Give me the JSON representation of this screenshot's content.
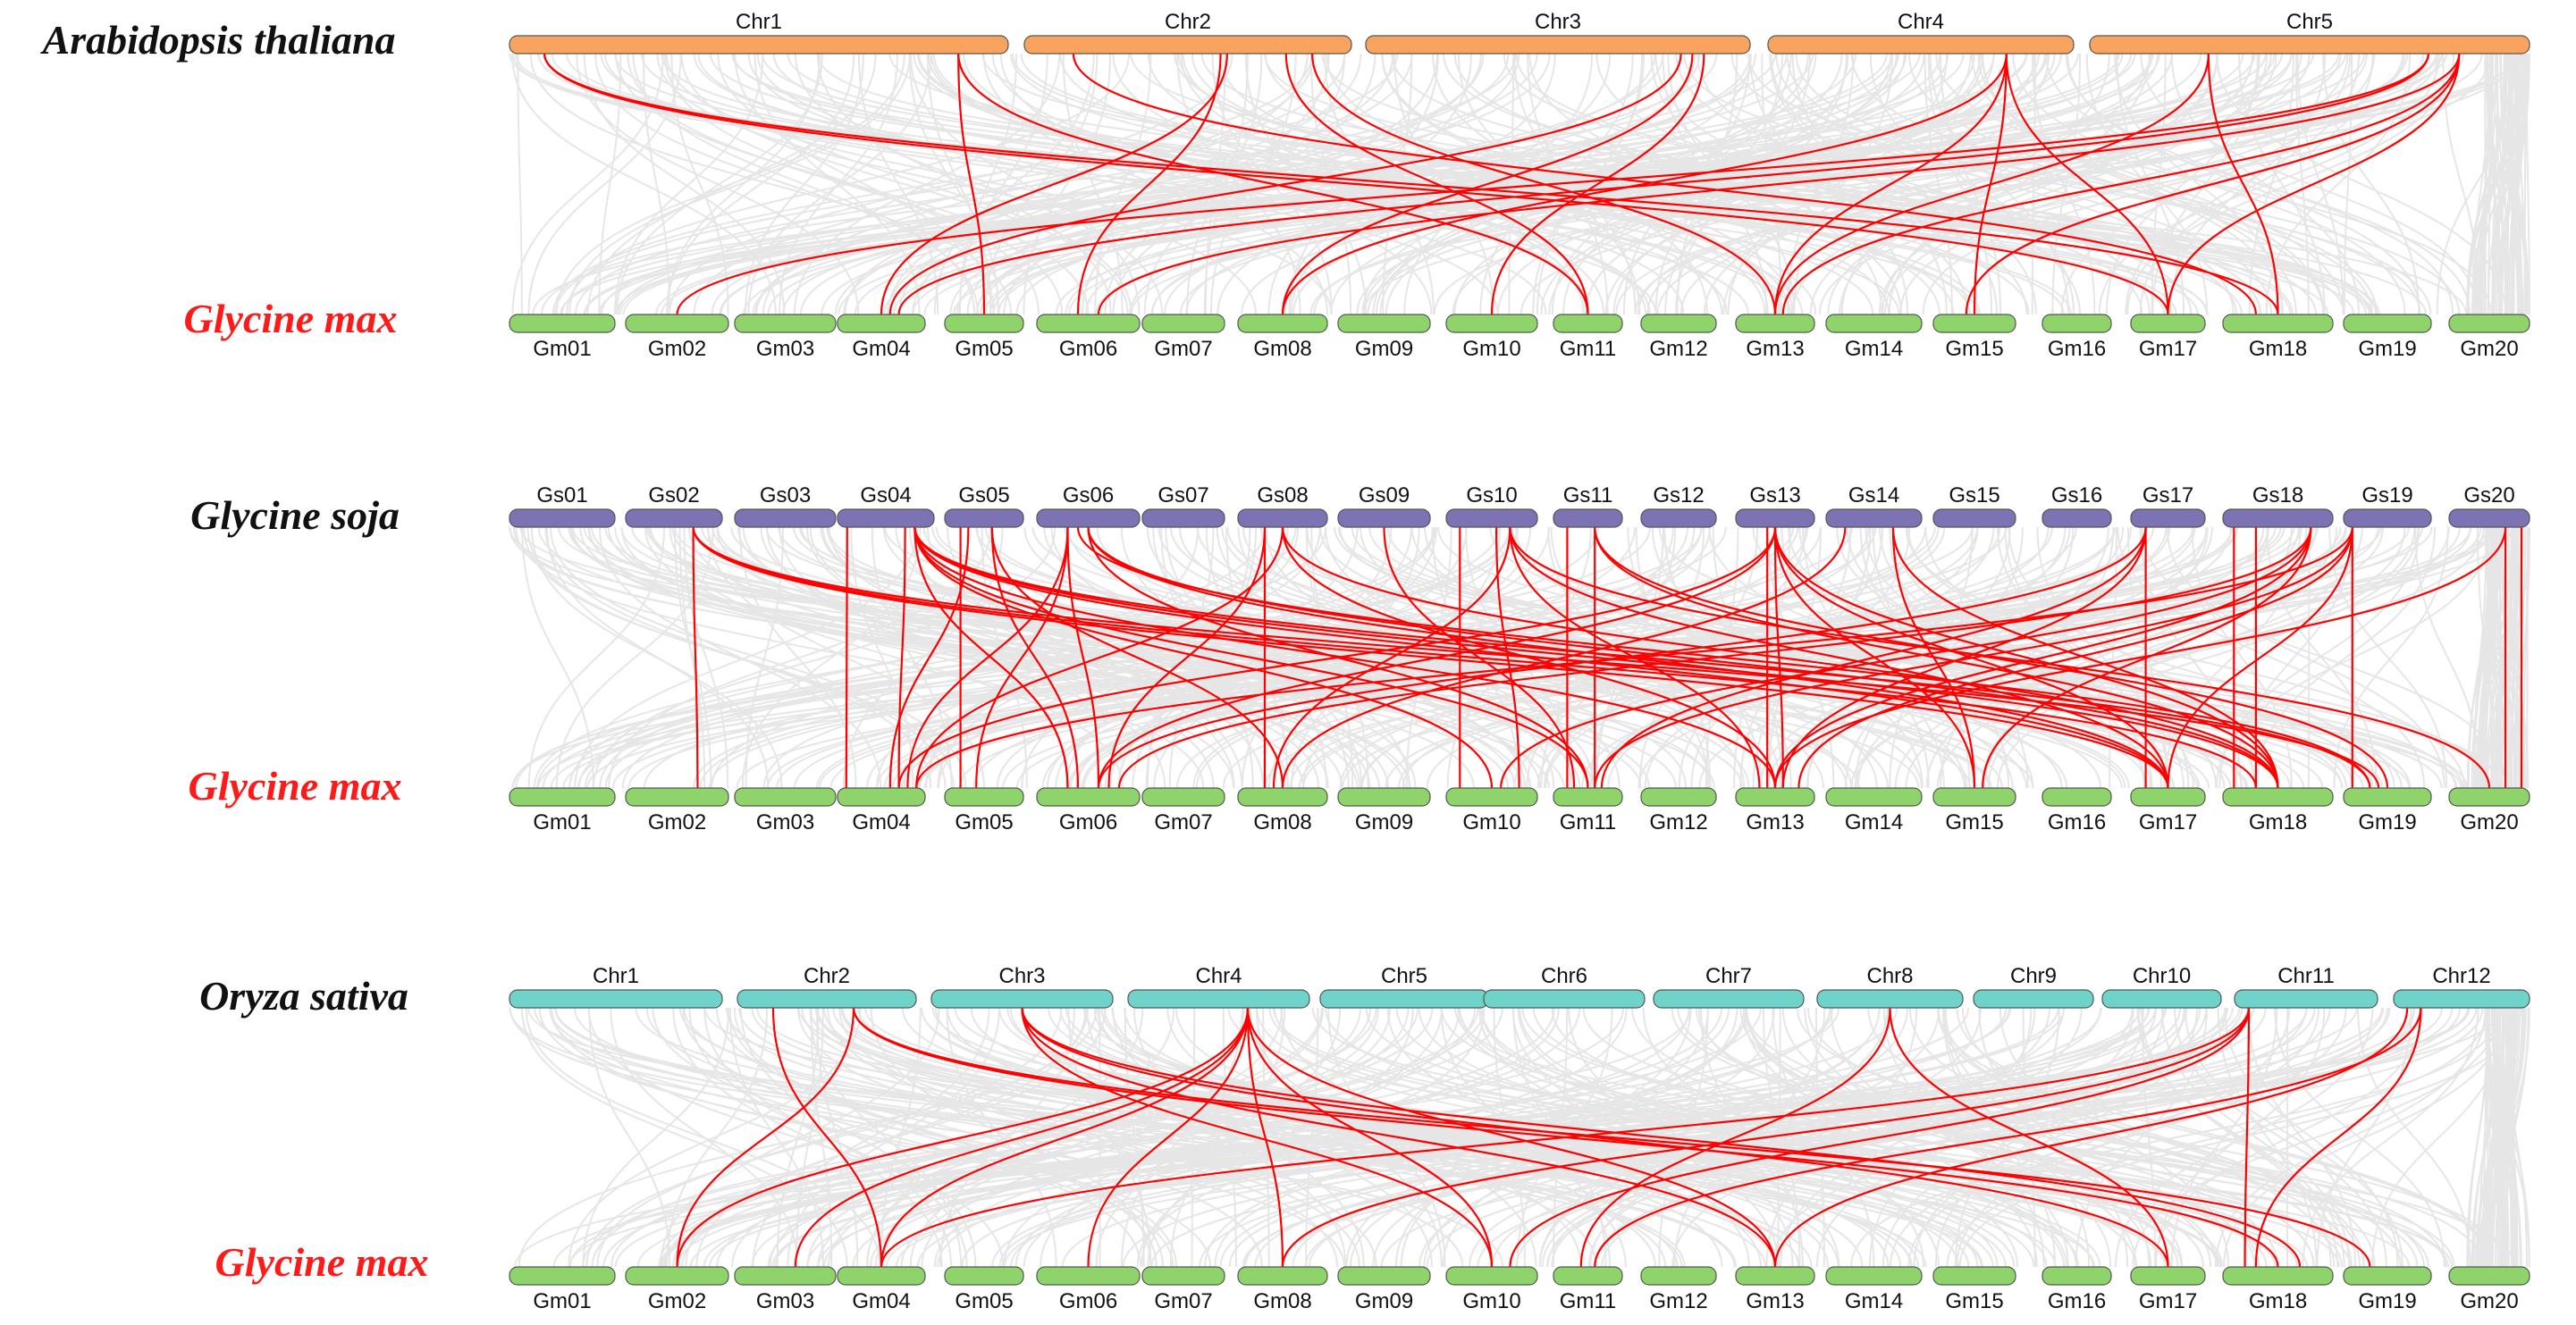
{
  "colors": {
    "arabidopsis": "#F8A35E",
    "soja": "#7B73B3",
    "oryza": "#6FD3C9",
    "max": "#8FD46A",
    "link": "#FF0000",
    "background_link": "#E6E6E6",
    "species_black": "#111111",
    "species_red": "#FF1A1A"
  },
  "gm_names": [
    "Gm01",
    "Gm02",
    "Gm03",
    "Gm04",
    "Gm05",
    "Gm06",
    "Gm07",
    "Gm08",
    "Gm09",
    "Gm10",
    "Gm11",
    "Gm12",
    "Gm13",
    "Gm14",
    "Gm15",
    "Gm16",
    "Gm17",
    "Gm18",
    "Gm19",
    "Gm20"
  ],
  "panels": [
    {
      "id": "arabidopsis",
      "top_species": "Arabidopsis thaliana",
      "bottom_species": "Glycine max",
      "top_chromosomes": [
        "Chr1",
        "Chr2",
        "Chr3",
        "Chr4",
        "Chr5"
      ],
      "top_labels_above": true,
      "links": [
        [
          "Chr1",
          0.07,
          "Gm17",
          0.5
        ],
        [
          "Chr1",
          0.07,
          "Gm18",
          0.5
        ],
        [
          "Chr1",
          0.9,
          "Gm05",
          0.5
        ],
        [
          "Chr1",
          0.9,
          "Gm11",
          0.5
        ],
        [
          "Chr2",
          0.15,
          "Gm18",
          0.3
        ],
        [
          "Chr2",
          0.6,
          "Gm06",
          0.4
        ],
        [
          "Chr2",
          0.62,
          "Gm04",
          0.5
        ],
        [
          "Chr2",
          0.8,
          "Gm11",
          0.5
        ],
        [
          "Chr2",
          0.88,
          "Gm13",
          0.5
        ],
        [
          "Chr3",
          0.82,
          "Gm04",
          0.6
        ],
        [
          "Chr3",
          0.85,
          "Gm08",
          0.5
        ],
        [
          "Chr3",
          0.88,
          "Gm10",
          0.5
        ],
        [
          "Chr4",
          0.78,
          "Gm13",
          0.5
        ],
        [
          "Chr4",
          0.78,
          "Gm15",
          0.5
        ],
        [
          "Chr4",
          0.78,
          "Gm17",
          0.5
        ],
        [
          "Chr4",
          0.78,
          "Gm08",
          0.5
        ],
        [
          "Chr5",
          0.27,
          "Gm13",
          0.5
        ],
        [
          "Chr5",
          0.27,
          "Gm18",
          0.5
        ],
        [
          "Chr5",
          0.77,
          "Gm02",
          0.5
        ],
        [
          "Chr5",
          0.77,
          "Gm04",
          0.7
        ],
        [
          "Chr5",
          0.84,
          "Gm06",
          0.6
        ],
        [
          "Chr5",
          0.84,
          "Gm13",
          0.6
        ],
        [
          "Chr5",
          0.84,
          "Gm17",
          0.5
        ],
        [
          "Chr5",
          0.84,
          "Gm15",
          0.4
        ]
      ]
    },
    {
      "id": "soja",
      "top_species": "Glycine soja",
      "bottom_species": "Glycine max",
      "top_chromosomes": [
        "Gs01",
        "Gs02",
        "Gs03",
        "Gs04",
        "Gs05",
        "Gs06",
        "Gs07",
        "Gs08",
        "Gs09",
        "Gs10",
        "Gs11",
        "Gs12",
        "Gs13",
        "Gs14",
        "Gs15",
        "Gs16",
        "Gs17",
        "Gs18",
        "Gs19",
        "Gs20"
      ],
      "top_labels_above": true,
      "links": [
        [
          "Gs02",
          0.7,
          "Gm02",
          0.7
        ],
        [
          "Gs02",
          0.7,
          "Gm17",
          0.5
        ],
        [
          "Gs02",
          0.7,
          "Gm18",
          0.3
        ],
        [
          "Gs02",
          0.7,
          "Gm19",
          0.4
        ],
        [
          "Gs04",
          0.1,
          "Gm04",
          0.1
        ],
        [
          "Gs04",
          0.7,
          "Gm04",
          0.7
        ],
        [
          "Gs04",
          0.8,
          "Gm06",
          0.3
        ],
        [
          "Gs04",
          0.8,
          "Gm10",
          0.5
        ],
        [
          "Gs04",
          0.8,
          "Gm11",
          0.5
        ],
        [
          "Gs04",
          0.8,
          "Gm13",
          0.5
        ],
        [
          "Gs04",
          0.8,
          "Gm17",
          0.5
        ],
        [
          "Gs04",
          0.8,
          "Gm18",
          0.5
        ],
        [
          "Gs04",
          0.8,
          "Gm19",
          0.3
        ],
        [
          "Gs05",
          0.2,
          "Gm05",
          0.2
        ],
        [
          "Gs05",
          0.6,
          "Gm06",
          0.4
        ],
        [
          "Gs05",
          0.6,
          "Gm08",
          0.5
        ],
        [
          "Gs05",
          0.3,
          "Gm04",
          0.6
        ],
        [
          "Gs06",
          0.3,
          "Gm06",
          0.6
        ],
        [
          "Gs06",
          0.3,
          "Gm04",
          0.8
        ],
        [
          "Gs06",
          0.3,
          "Gm05",
          0.4
        ],
        [
          "Gs06",
          0.5,
          "Gm17",
          0.5
        ],
        [
          "Gs06",
          0.5,
          "Gm18",
          0.5
        ],
        [
          "Gs06",
          0.5,
          "Gm11",
          0.5
        ],
        [
          "Gs06",
          0.4,
          "Gm19",
          0.3
        ],
        [
          "Gs08",
          0.3,
          "Gm08",
          0.3
        ],
        [
          "Gs08",
          0.3,
          "Gm06",
          0.7
        ],
        [
          "Gs08",
          0.5,
          "Gm13",
          0.5
        ],
        [
          "Gs08",
          0.5,
          "Gm18",
          0.5
        ],
        [
          "Gs08",
          0.5,
          "Gm04",
          0.9
        ],
        [
          "Gs10",
          0.15,
          "Gm10",
          0.15
        ],
        [
          "Gs10",
          0.55,
          "Gm10",
          0.8
        ],
        [
          "Gs10",
          0.7,
          "Gm08",
          0.4
        ],
        [
          "Gs10",
          0.7,
          "Gm13",
          0.3
        ],
        [
          "Gs10",
          0.7,
          "Gm17",
          0.5
        ],
        [
          "Gs10",
          0.7,
          "Gm20",
          0.5
        ],
        [
          "Gs09",
          0.5,
          "Gm11",
          0.3
        ],
        [
          "Gs11",
          0.2,
          "Gm11",
          0.2
        ],
        [
          "Gs11",
          0.6,
          "Gm11",
          0.6
        ],
        [
          "Gs11",
          0.6,
          "Gm19",
          0.5
        ],
        [
          "Gs11",
          0.6,
          "Gm18",
          0.5
        ],
        [
          "Gs13",
          0.4,
          "Gm13",
          0.4
        ],
        [
          "Gs13",
          0.5,
          "Gm13",
          0.6
        ],
        [
          "Gs13",
          0.5,
          "Gm15",
          0.5
        ],
        [
          "Gs13",
          0.5,
          "Gm06",
          0.6
        ],
        [
          "Gs13",
          0.5,
          "Gm17",
          0.5
        ],
        [
          "Gs13",
          0.5,
          "Gm18",
          0.5
        ],
        [
          "Gs13",
          0.5,
          "Gm04",
          0.7
        ],
        [
          "Gs14",
          0.2,
          "Gm08",
          0.5
        ],
        [
          "Gs14",
          0.7,
          "Gm15",
          0.5
        ],
        [
          "Gs14",
          0.7,
          "Gm18",
          0.5
        ],
        [
          "Gs17",
          0.2,
          "Gm17",
          0.2
        ],
        [
          "Gs17",
          0.2,
          "Gm13",
          0.6
        ],
        [
          "Gs17",
          0.2,
          "Gm11",
          0.7
        ],
        [
          "Gs17",
          0.2,
          "Gm06",
          0.6
        ],
        [
          "Gs18",
          0.1,
          "Gm18",
          0.1
        ],
        [
          "Gs18",
          0.3,
          "Gm18",
          0.3
        ],
        [
          "Gs18",
          0.8,
          "Gm15",
          0.6
        ],
        [
          "Gs18",
          0.8,
          "Gm10",
          0.6
        ],
        [
          "Gs18",
          0.8,
          "Gm13",
          0.5
        ],
        [
          "Gs18",
          0.8,
          "Gm06",
          0.8
        ],
        [
          "Gs19",
          0.1,
          "Gm19",
          0.1
        ],
        [
          "Gs19",
          0.1,
          "Gm17",
          0.5
        ],
        [
          "Gs19",
          0.1,
          "Gm11",
          0.6
        ],
        [
          "Gs19",
          0.1,
          "Gm04",
          0.9
        ],
        [
          "Gs19",
          0.1,
          "Gm13",
          0.8
        ],
        [
          "Gs20",
          0.7,
          "Gm20",
          0.7
        ],
        [
          "Gs20",
          0.7,
          "Gm13",
          0.5
        ],
        [
          "Gs20",
          0.9,
          "Gm20",
          0.9
        ]
      ]
    },
    {
      "id": "oryza",
      "top_species": "Oryza sativa",
      "bottom_species": "Glycine max",
      "top_chromosomes": [
        "Chr1",
        "Chr2",
        "Chr3",
        "Chr4",
        "Chr5",
        "Chr6",
        "Chr7",
        "Chr8",
        "Chr9",
        "Chr10",
        "Chr11",
        "Chr12"
      ],
      "top_labels_above": true,
      "links": [
        [
          "Chr2",
          0.2,
          "Gm04",
          0.5
        ],
        [
          "Chr2",
          0.65,
          "Gm02",
          0.5
        ],
        [
          "Chr2",
          0.65,
          "Gm18",
          0.5
        ],
        [
          "Chr2",
          0.65,
          "Gm19",
          0.3
        ],
        [
          "Chr3",
          0.5,
          "Gm10",
          0.5
        ],
        [
          "Chr3",
          0.5,
          "Gm13",
          0.5
        ],
        [
          "Chr3",
          0.5,
          "Gm17",
          0.5
        ],
        [
          "Chr3",
          0.5,
          "Gm18",
          0.7
        ],
        [
          "Chr4",
          0.66,
          "Gm02",
          0.5
        ],
        [
          "Chr4",
          0.66,
          "Gm04",
          0.5
        ],
        [
          "Chr4",
          0.66,
          "Gm06",
          0.5
        ],
        [
          "Chr4",
          0.66,
          "Gm08",
          0.5
        ],
        [
          "Chr4",
          0.66,
          "Gm10",
          0.5
        ],
        [
          "Chr4",
          0.66,
          "Gm13",
          0.5
        ],
        [
          "Chr4",
          0.66,
          "Gm03",
          0.6
        ],
        [
          "Chr8",
          0.5,
          "Gm11",
          0.4
        ],
        [
          "Chr8",
          0.5,
          "Gm17",
          0.5
        ],
        [
          "Chr11",
          0.1,
          "Gm04",
          0.5
        ],
        [
          "Chr11",
          0.1,
          "Gm18",
          0.2
        ],
        [
          "Chr11",
          0.1,
          "Gm08",
          0.5
        ],
        [
          "Chr11",
          0.1,
          "Gm10",
          0.7
        ],
        [
          "Chr12",
          0.1,
          "Gm13",
          0.5
        ],
        [
          "Chr12",
          0.2,
          "Gm18",
          0.3
        ],
        [
          "Chr12",
          0.2,
          "Gm11",
          0.6
        ]
      ]
    }
  ]
}
